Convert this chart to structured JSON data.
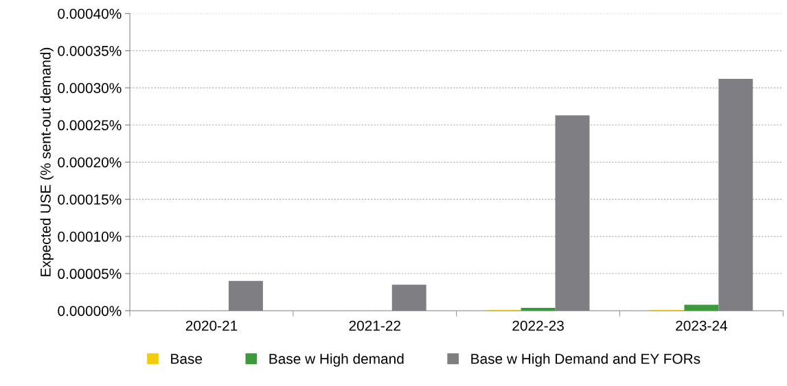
{
  "chart_data": {
    "type": "bar",
    "ylabel": "Expected USE (% sent-out demand)",
    "categories": [
      "2020-21",
      "2021-22",
      "2022-23",
      "2023-24"
    ],
    "series": [
      {
        "name": "Base",
        "color": "#f2cc0c",
        "values": [
          0,
          0,
          1e-06,
          1e-06
        ]
      },
      {
        "name": "Base w High demand",
        "color": "#3d9a3a",
        "values": [
          0,
          0,
          4e-06,
          8e-06
        ]
      },
      {
        "name": "Base w High Demand and EY FORs",
        "color": "#7f7e83",
        "values": [
          4e-05,
          3.5e-05,
          0.000263,
          0.000312
        ]
      }
    ],
    "ylim": [
      0,
      0.0004
    ],
    "yticks": [
      {
        "value": 0,
        "label": "0.00000%"
      },
      {
        "value": 5e-05,
        "label": "0.00005%"
      },
      {
        "value": 0.0001,
        "label": "0.00010%"
      },
      {
        "value": 0.00015,
        "label": "0.00015%"
      },
      {
        "value": 0.0002,
        "label": "0.00020%"
      },
      {
        "value": 0.00025,
        "label": "0.00025%"
      },
      {
        "value": 0.0003,
        "label": "0.00030%"
      },
      {
        "value": 0.00035,
        "label": "0.00035%"
      },
      {
        "value": 0.0004,
        "label": "0.00040%"
      }
    ],
    "grid": "y",
    "legend": "bottom"
  }
}
